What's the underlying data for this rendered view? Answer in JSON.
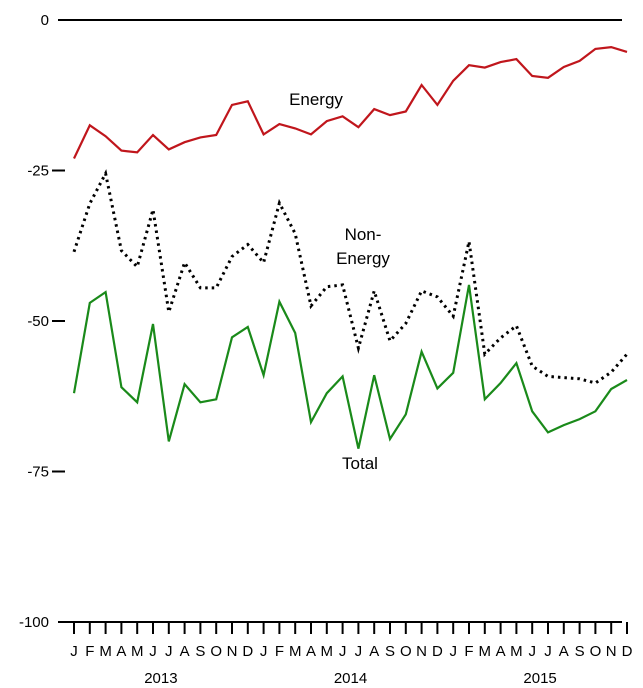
{
  "chart_data": {
    "type": "line",
    "title": "",
    "xlabel": "",
    "ylabel": "",
    "ylim": [
      -100,
      0
    ],
    "yticks": [
      "0",
      "-25",
      "-50",
      "-75",
      "-100"
    ],
    "ytick_values": [
      0,
      -25,
      -50,
      -75,
      -100
    ],
    "x_month_labels": [
      "J",
      "F",
      "M",
      "A",
      "M",
      "J",
      "J",
      "A",
      "S",
      "O",
      "N",
      "D",
      "J",
      "F",
      "M",
      "A",
      "M",
      "J",
      "J",
      "A",
      "S",
      "O",
      "N",
      "D",
      "J",
      "F",
      "M",
      "A",
      "M",
      "J",
      "J",
      "A",
      "S",
      "O",
      "N",
      "D"
    ],
    "x_year_labels": [
      "2013",
      "2014",
      "2015"
    ],
    "grid": false,
    "legend": "none",
    "series": [
      {
        "annotation": "Energy",
        "color": "#c0161c",
        "dash": "solid",
        "values": [
          -23,
          -17.5,
          -19.3,
          -21.7,
          -22,
          -19.1,
          -21.5,
          -20.3,
          -19.5,
          -19.1,
          -14.1,
          -13.5,
          -19,
          -17.3,
          -18,
          -19,
          -16.8,
          -16,
          -17.8,
          -14.8,
          -15.8,
          -15.2,
          -10.8,
          -14.1,
          -10.1,
          -7.5,
          -7.9,
          -7,
          -6.5,
          -9.3,
          -9.6,
          -7.8,
          -6.8,
          -4.8,
          -4.5,
          -5.3
        ]
      },
      {
        "annotation": "Non-\nEnergy",
        "color": "#000000",
        "dash": "dotted",
        "values": [
          -38.5,
          -30.5,
          -25.5,
          -38.3,
          -41,
          -31.5,
          -48.5,
          -40.3,
          -44.5,
          -44.5,
          -39.3,
          -37.3,
          -40.3,
          -30.4,
          -35.5,
          -47.5,
          -44.3,
          -44,
          -54.5,
          -45,
          -53.3,
          -50.4,
          -45,
          -46,
          -49.2,
          -36.8,
          -55.5,
          -52.8,
          -50.8,
          -57.5,
          -59.2,
          -59.4,
          -59.6,
          -60.3,
          -58.5,
          -55.5
        ]
      },
      {
        "annotation": "Total",
        "color": "#1a8a1a",
        "dash": "solid",
        "values": [
          -62,
          -47,
          -45.2,
          -61,
          -63.5,
          -50.5,
          -70,
          -60.5,
          -63.5,
          -63,
          -52.7,
          -51,
          -59,
          -46.8,
          -52,
          -66.8,
          -62,
          -59.2,
          -71.2,
          -59,
          -69.6,
          -65.5,
          -55.1,
          -61.2,
          -58.6,
          -44,
          -63,
          -60.3,
          -57,
          -65,
          -68.5,
          -67.3,
          -66.3,
          -65,
          -61.3,
          -59.8
        ]
      }
    ]
  }
}
